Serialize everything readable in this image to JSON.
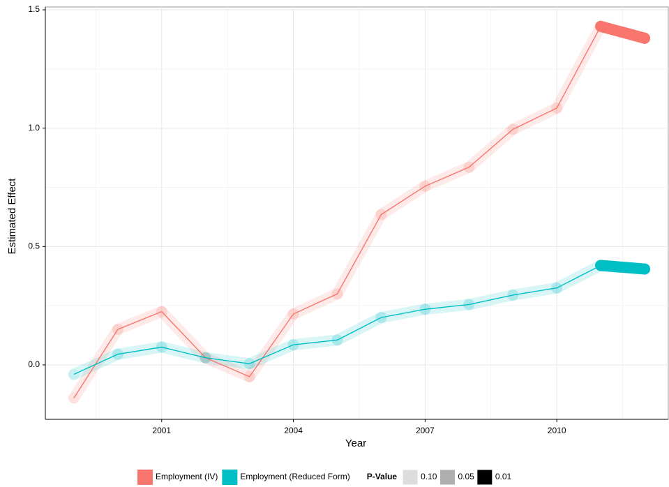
{
  "chart_data": {
    "type": "line",
    "x_label": "Year",
    "y_label": "Estimated Effect",
    "x": [
      1999,
      2000,
      2001,
      2002,
      2003,
      2004,
      2005,
      2006,
      2007,
      2008,
      2009,
      2010,
      2011,
      2012
    ],
    "series": [
      {
        "name": "Employment (IV)",
        "color": "#F8766D",
        "values": [
          -0.14,
          0.15,
          0.225,
          0.03,
          -0.05,
          0.215,
          0.3,
          0.635,
          0.755,
          0.835,
          0.995,
          1.085,
          1.43,
          1.38
        ],
        "p_values": [
          0.1,
          0.1,
          0.1,
          0.1,
          0.1,
          0.1,
          0.1,
          0.1,
          0.1,
          0.1,
          0.1,
          0.1,
          0.01,
          0.01
        ]
      },
      {
        "name": "Employment (Reduced Form)",
        "color": "#00BFC4",
        "values": [
          -0.04,
          0.045,
          0.075,
          0.03,
          0.005,
          0.085,
          0.105,
          0.2,
          0.235,
          0.255,
          0.295,
          0.325,
          0.42,
          0.405
        ],
        "p_values": [
          0.1,
          0.1,
          0.1,
          0.1,
          0.1,
          0.1,
          0.1,
          0.1,
          0.1,
          0.1,
          0.1,
          0.1,
          0.01,
          0.01
        ]
      }
    ],
    "xlim": [
      1998.35,
      2012.54
    ],
    "xticks": [
      2001,
      2004,
      2007,
      2010
    ],
    "ylim": [
      -0.23,
      1.512
    ],
    "yticks": [
      {
        "value": 0,
        "label": "0.0"
      },
      0.5,
      {
        "value": 1,
        "label": "1.0"
      },
      1.5
    ],
    "grid": true,
    "legend_position": "bottom",
    "p_legend": {
      "title": "P-Value",
      "levels": [
        {
          "value": 0.1,
          "label": "0.10"
        },
        {
          "value": 0.05,
          "label": "0.05"
        },
        {
          "value": 0.01,
          "label": "0.01"
        }
      ]
    }
  }
}
